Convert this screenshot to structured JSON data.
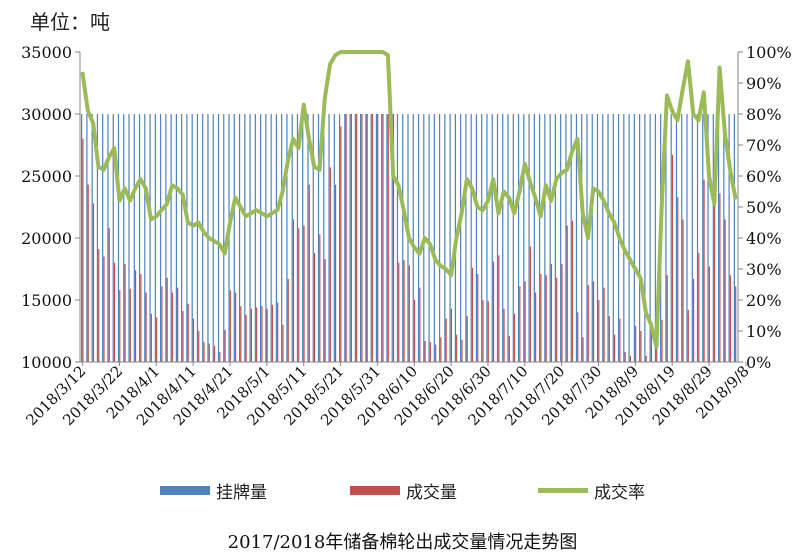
{
  "unit_label": "单位：吨",
  "title": "2017/2018年储备棉轮出成交量情况走势图",
  "legend": {
    "listing": "挂牌量",
    "volume": "成交量",
    "rate": "成交率"
  },
  "colors": {
    "listing": "#4F81BD",
    "volume": "#C0504D",
    "rate": "#9BBB59"
  },
  "chart_data": {
    "type": "bar",
    "title": "2017/2018年储备棉轮出成交量情况走势图",
    "unit": "单位：吨",
    "y_left": {
      "min": 10000,
      "max": 35000,
      "ticks": [
        "10000",
        "15000",
        "20000",
        "25000",
        "30000",
        "35000"
      ]
    },
    "y_right": {
      "min": 0,
      "max": 100,
      "ticks": [
        "0%",
        "10%",
        "20%",
        "30%",
        "40%",
        "50%",
        "60%",
        "70%",
        "80%",
        "90%",
        "100%"
      ]
    },
    "x_tick_labels": [
      "2018/3/12",
      "2018/3/22",
      "2018/4/1",
      "2018/4/11",
      "2018/4/21",
      "2018/5/1",
      "2018/5/11",
      "2018/5/21",
      "2018/5/31",
      "2018/6/10",
      "2018/6/20",
      "2018/6/30",
      "2018/7/10",
      "2018/7/20",
      "2018/7/30",
      "2018/8/9",
      "2018/8/19",
      "2018/8/29",
      "2018/9/8"
    ],
    "legend_placement": "bottom",
    "grid": false,
    "series": [
      {
        "name": "挂牌量",
        "kind": "bar",
        "axis": "left",
        "values": [
          30000,
          30000,
          30000,
          30000,
          30000,
          30000,
          30000,
          30000,
          30000,
          30000,
          30000,
          30000,
          30000,
          30000,
          30000,
          30000,
          30000,
          30000,
          30000,
          30000,
          30000,
          30000,
          30000,
          30000,
          30000,
          30000,
          30000,
          30000,
          30000,
          30000,
          30000,
          30000,
          30000,
          30000,
          30000,
          30000,
          30000,
          30000,
          30000,
          30000,
          30000,
          30000,
          30000,
          30000,
          30000,
          30000,
          30000,
          30000,
          30000,
          30000,
          30000,
          30000,
          30000,
          30000,
          30000,
          30000,
          30000,
          30000,
          30000,
          30000,
          30000,
          30000,
          30000,
          30000,
          30000,
          30000,
          30000,
          30000,
          30000,
          30000,
          30000,
          30000,
          30000,
          30000,
          30000,
          30000,
          30000,
          30000,
          30000,
          30000,
          30000,
          30000,
          30000,
          30000,
          30000,
          30000,
          30000,
          30000,
          30000,
          30000,
          30000,
          30000,
          30000,
          30000,
          30000,
          30000,
          30000,
          30000,
          30000,
          30000,
          30000,
          30000,
          30000,
          30000,
          30000,
          30000,
          30000,
          30000,
          30000,
          30000,
          30000,
          30000,
          30000,
          30000,
          30000,
          30000,
          30000,
          30000,
          30000,
          30000,
          30000,
          30000,
          30000,
          30000,
          30000
        ]
      },
      {
        "name": "成交量",
        "kind": "bar",
        "axis": "left",
        "values": [
          28000,
          24300,
          22800,
          19100,
          18500,
          20800,
          18000,
          15800,
          17900,
          15900,
          17400,
          17100,
          15600,
          13900,
          13600,
          16100,
          16800,
          15600,
          16000,
          14100,
          14700,
          13500,
          12500,
          11600,
          11500,
          11300,
          10800,
          12600,
          15800,
          15600,
          14500,
          13800,
          14300,
          14400,
          14500,
          14300,
          14600,
          14800,
          13000,
          16700,
          21500,
          20800,
          21000,
          24300,
          18800,
          20300,
          18300,
          25700,
          24300,
          29000,
          30000,
          30000,
          30000,
          30000,
          30000,
          30000,
          30000,
          30000,
          30000,
          30000,
          18000,
          18200,
          17800,
          15000,
          16000,
          11700,
          11600,
          11400,
          12000,
          13500,
          14300,
          12200,
          11800,
          13700,
          17600,
          17100,
          15000,
          14900,
          18100,
          18600,
          14300,
          12100,
          13900,
          16100,
          16500,
          19300,
          15600,
          17100,
          17000,
          17900,
          16800,
          17900,
          21000,
          21400,
          14000,
          12000,
          16200,
          16500,
          15000,
          16000,
          13700,
          12200,
          13500,
          10800,
          10500,
          12900,
          12500,
          10500,
          12600,
          13300,
          13400,
          17000,
          26700,
          23300,
          21500,
          14200,
          16700,
          18800,
          24700,
          17700,
          23400,
          23600,
          21500,
          17000,
          16100
        ]
      },
      {
        "name": "成交率",
        "kind": "line",
        "axis": "right",
        "values": [
          93,
          81,
          77,
          63,
          62,
          66,
          69,
          52,
          56,
          52,
          56,
          59,
          56,
          46,
          47,
          49,
          51,
          57,
          56,
          54,
          45,
          44,
          45,
          42,
          40,
          39,
          38,
          35,
          45,
          53,
          50,
          47,
          48,
          49,
          48,
          47,
          48,
          49,
          55,
          65,
          72,
          69,
          83,
          72,
          63,
          62,
          85,
          96,
          99,
          100,
          100,
          100,
          100,
          100,
          100,
          100,
          100,
          100,
          99,
          60,
          57,
          49,
          40,
          37,
          35,
          40,
          38,
          33,
          31,
          30,
          28,
          40,
          48,
          59,
          56,
          50,
          49,
          52,
          59,
          48,
          55,
          53,
          48,
          55,
          64,
          58,
          53,
          47,
          57,
          52,
          59,
          61,
          62,
          68,
          72,
          48,
          40,
          56,
          55,
          52,
          48,
          45,
          40,
          36,
          33,
          30,
          27,
          16,
          12,
          5,
          50,
          86,
          81,
          78,
          88,
          97,
          80,
          78,
          87,
          60,
          51,
          95,
          74,
          62,
          53
        ]
      }
    ]
  }
}
